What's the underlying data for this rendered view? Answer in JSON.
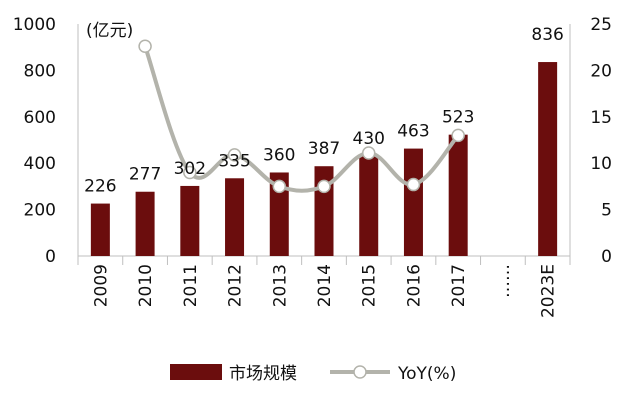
{
  "chart_data": {
    "type": "bar+line",
    "categories": [
      "2009",
      "2010",
      "2011",
      "2012",
      "2013",
      "2014",
      "2015",
      "2016",
      "2017",
      "……",
      "2023E"
    ],
    "series": [
      {
        "name": "市场规模",
        "type": "bar",
        "axis": "left",
        "color": "#6b0d0d",
        "values": [
          226,
          277,
          302,
          335,
          360,
          387,
          430,
          463,
          523,
          null,
          836
        ],
        "labels": [
          "226",
          "277",
          "302",
          "335",
          "360",
          "387",
          "430",
          "463",
          "523",
          "",
          "836"
        ]
      },
      {
        "name": "YoY(%)",
        "type": "line",
        "axis": "right",
        "color": "#b3b3ab",
        "values": [
          null,
          22.6,
          9.0,
          10.9,
          7.5,
          7.5,
          11.1,
          7.7,
          13.0,
          null,
          null
        ]
      }
    ],
    "left_axis": {
      "unit_label": "(亿元)",
      "ylim": [
        0,
        1000
      ],
      "ticks": [
        "0",
        "200",
        "400",
        "600",
        "800",
        "1000"
      ]
    },
    "right_axis": {
      "ylim": [
        0,
        25
      ],
      "ticks": [
        "0",
        "5",
        "10",
        "15",
        "20",
        "25"
      ]
    },
    "grid": false,
    "legend_position": "bottom"
  }
}
